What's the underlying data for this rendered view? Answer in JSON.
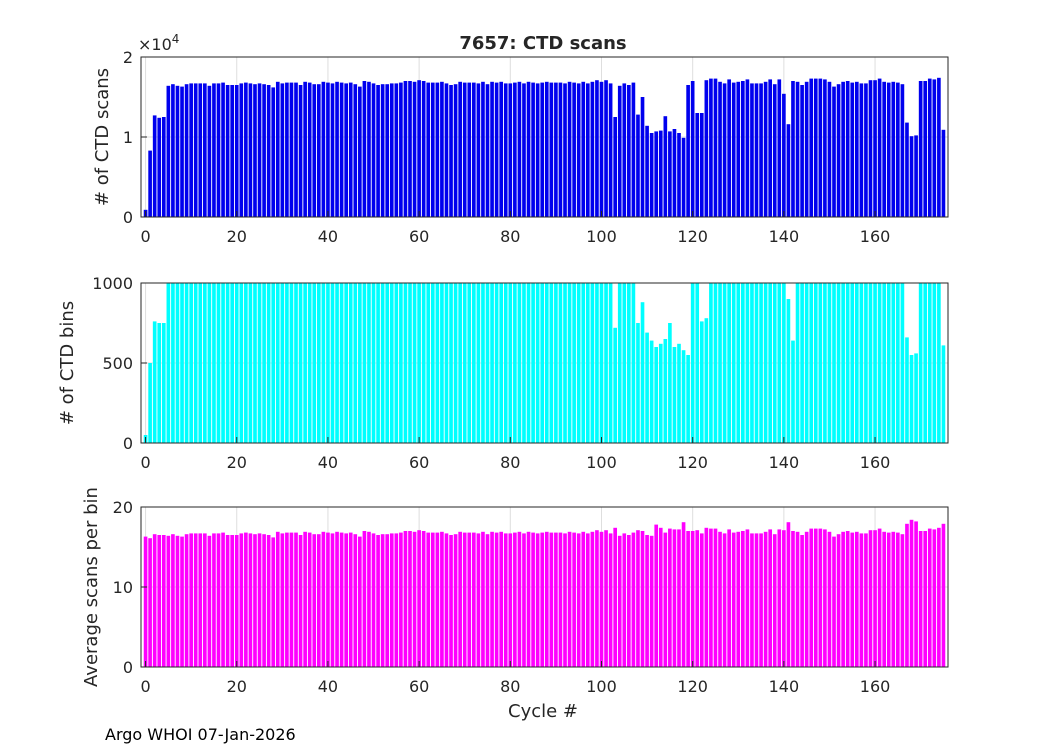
{
  "figure": {
    "title": "7657: CTD scans",
    "footer": "Argo WHOI 07-Jan-2026",
    "xlabel": "Cycle #"
  },
  "colors": {
    "scans": "#0000ee",
    "bins": "#00ffff",
    "ratio": "#ff00ff",
    "axis": "#262626",
    "grid": "#dedede"
  },
  "chart_data": [
    {
      "type": "bar",
      "name": "scans",
      "title": "7657: CTD scans",
      "ylabel": "# of CTD scans",
      "exponent_label": "×10",
      "exponent_power": "4",
      "xlim": [
        -1,
        176
      ],
      "ylim": [
        0,
        20000
      ],
      "xticks": [
        0,
        20,
        40,
        60,
        80,
        100,
        120,
        140,
        160
      ],
      "yticks": [
        0,
        10000,
        20000
      ],
      "ytick_labels": [
        "0",
        "1",
        "2"
      ],
      "x_start": 0,
      "values": [
        900,
        8300,
        12700,
        12400,
        12500,
        16400,
        16600,
        16400,
        16300,
        16600,
        16700,
        16700,
        16700,
        16700,
        16400,
        16700,
        16700,
        16800,
        16500,
        16500,
        16500,
        16700,
        16800,
        16700,
        16600,
        16700,
        16600,
        16500,
        16200,
        16900,
        16700,
        16800,
        16800,
        16800,
        16500,
        16900,
        16800,
        16600,
        16600,
        16900,
        16800,
        16700,
        16900,
        16800,
        16700,
        16800,
        16600,
        16300,
        17000,
        16900,
        16700,
        16500,
        16600,
        16600,
        16700,
        16700,
        16800,
        17000,
        17000,
        16900,
        17100,
        17000,
        16800,
        16800,
        16800,
        16900,
        16700,
        16500,
        16600,
        16900,
        16800,
        16800,
        16800,
        16700,
        16900,
        16600,
        16900,
        16800,
        16900,
        16700,
        16700,
        16800,
        16900,
        16700,
        16900,
        16800,
        16700,
        16800,
        16900,
        16800,
        16800,
        16800,
        16700,
        16900,
        16800,
        16700,
        16900,
        16700,
        16900,
        17100,
        16900,
        17100,
        16700,
        12500,
        16400,
        16700,
        16500,
        16800,
        12800,
        15000,
        11400,
        10500,
        10700,
        10800,
        12600,
        10700,
        11000,
        10500,
        9900,
        16500,
        17000,
        13000,
        13000,
        17100,
        17300,
        17300,
        16900,
        16700,
        17200,
        16800,
        16900,
        17000,
        17200,
        16700,
        16700,
        16700,
        16900,
        17200,
        16600,
        17200,
        15400,
        11600,
        17000,
        16900,
        16500,
        16900,
        17300,
        17300,
        17300,
        17200,
        16900,
        16300,
        16600,
        16900,
        17000,
        16800,
        16900,
        16700,
        16700,
        17100,
        17100,
        17300,
        16900,
        16800,
        16900,
        16800,
        16600,
        11800,
        10100,
        10200,
        17000,
        17000,
        17300,
        17200,
        17400,
        10900
      ]
    },
    {
      "type": "bar",
      "name": "bins",
      "ylabel": "# of CTD bins",
      "xlim": [
        -1,
        176
      ],
      "ylim": [
        0,
        1000
      ],
      "xticks": [
        0,
        20,
        40,
        60,
        80,
        100,
        120,
        140,
        160
      ],
      "yticks": [
        0,
        500,
        1000
      ],
      "ytick_labels": [
        "0",
        "500",
        "1000"
      ],
      "x_start": 0,
      "values": [
        50,
        500,
        760,
        750,
        750,
        1000,
        1000,
        1000,
        1000,
        1000,
        1000,
        1000,
        1000,
        1000,
        1000,
        1000,
        1000,
        1000,
        1000,
        1000,
        1000,
        1000,
        1000,
        1000,
        1000,
        1000,
        1000,
        1000,
        1000,
        1000,
        1000,
        1000,
        1000,
        1000,
        1000,
        1000,
        1000,
        1000,
        1000,
        1000,
        1000,
        1000,
        1000,
        1000,
        1000,
        1000,
        1000,
        1000,
        1000,
        1000,
        1000,
        1000,
        1000,
        1000,
        1000,
        1000,
        1000,
        1000,
        1000,
        1000,
        1000,
        1000,
        1000,
        1000,
        1000,
        1000,
        1000,
        1000,
        1000,
        1000,
        1000,
        1000,
        1000,
        1000,
        1000,
        1000,
        1000,
        1000,
        1000,
        1000,
        1000,
        1000,
        1000,
        1000,
        1000,
        1000,
        1000,
        1000,
        1000,
        1000,
        1000,
        1000,
        1000,
        1000,
        1000,
        1000,
        1000,
        1000,
        1000,
        1000,
        1000,
        1000,
        1000,
        720,
        1000,
        1000,
        1000,
        1000,
        750,
        880,
        690,
        640,
        600,
        620,
        650,
        750,
        600,
        620,
        580,
        550,
        1000,
        1000,
        760,
        780,
        1000,
        1000,
        1000,
        1000,
        1000,
        1000,
        1000,
        1000,
        1000,
        1000,
        1000,
        1000,
        1000,
        1000,
        1000,
        1000,
        1000,
        900,
        640,
        1000,
        1000,
        1000,
        1000,
        1000,
        1000,
        1000,
        1000,
        1000,
        1000,
        1000,
        1000,
        1000,
        1000,
        1000,
        1000,
        1000,
        1000,
        1000,
        1000,
        1000,
        1000,
        1000,
        1000,
        660,
        550,
        560,
        1000,
        1000,
        1000,
        1000,
        1000,
        610
      ]
    },
    {
      "type": "bar",
      "name": "ratio",
      "ylabel": "Average scans per bin",
      "xlabel": "Cycle #",
      "xlim": [
        -1,
        176
      ],
      "ylim": [
        0,
        20
      ],
      "xticks": [
        0,
        20,
        40,
        60,
        80,
        100,
        120,
        140,
        160
      ],
      "yticks": [
        0,
        10,
        20
      ],
      "ytick_labels": [
        "0",
        "10",
        "20"
      ],
      "x_start": 0,
      "values": [
        16.3,
        16.1,
        16.6,
        16.5,
        16.5,
        16.4,
        16.6,
        16.4,
        16.3,
        16.6,
        16.7,
        16.7,
        16.7,
        16.7,
        16.4,
        16.7,
        16.7,
        16.8,
        16.5,
        16.5,
        16.5,
        16.7,
        16.8,
        16.7,
        16.6,
        16.7,
        16.6,
        16.5,
        16.2,
        16.9,
        16.7,
        16.8,
        16.8,
        16.8,
        16.5,
        16.9,
        16.8,
        16.6,
        16.6,
        16.9,
        16.8,
        16.7,
        16.9,
        16.8,
        16.7,
        16.8,
        16.6,
        16.3,
        17.0,
        16.9,
        16.7,
        16.5,
        16.6,
        16.6,
        16.7,
        16.7,
        16.8,
        17.0,
        17.0,
        16.9,
        17.1,
        17.0,
        16.8,
        16.8,
        16.8,
        16.9,
        16.7,
        16.5,
        16.6,
        16.9,
        16.8,
        16.8,
        16.8,
        16.7,
        16.9,
        16.6,
        16.9,
        16.8,
        16.9,
        16.7,
        16.7,
        16.8,
        16.9,
        16.7,
        16.9,
        16.8,
        16.7,
        16.8,
        16.9,
        16.8,
        16.8,
        16.8,
        16.7,
        16.9,
        16.8,
        16.7,
        16.9,
        16.7,
        16.9,
        17.1,
        16.9,
        17.1,
        16.7,
        17.4,
        16.4,
        16.7,
        16.5,
        16.8,
        17.1,
        17.0,
        16.5,
        16.4,
        17.8,
        17.4,
        16.8,
        17.3,
        17.2,
        17.2,
        18.1,
        17.0,
        17.0,
        17.1,
        16.7,
        17.4,
        17.3,
        17.3,
        16.9,
        16.7,
        17.2,
        16.8,
        16.9,
        17.0,
        17.2,
        16.7,
        16.7,
        16.7,
        16.9,
        17.2,
        16.6,
        17.2,
        17.1,
        18.1,
        17.0,
        16.9,
        16.5,
        16.9,
        17.3,
        17.3,
        17.3,
        17.2,
        16.9,
        16.3,
        16.6,
        16.9,
        17.0,
        16.8,
        16.9,
        16.7,
        16.7,
        17.1,
        17.1,
        17.3,
        16.9,
        16.8,
        16.9,
        16.8,
        16.6,
        17.9,
        18.4,
        18.2,
        17.0,
        17.0,
        17.3,
        17.2,
        17.4,
        17.9
      ]
    }
  ]
}
